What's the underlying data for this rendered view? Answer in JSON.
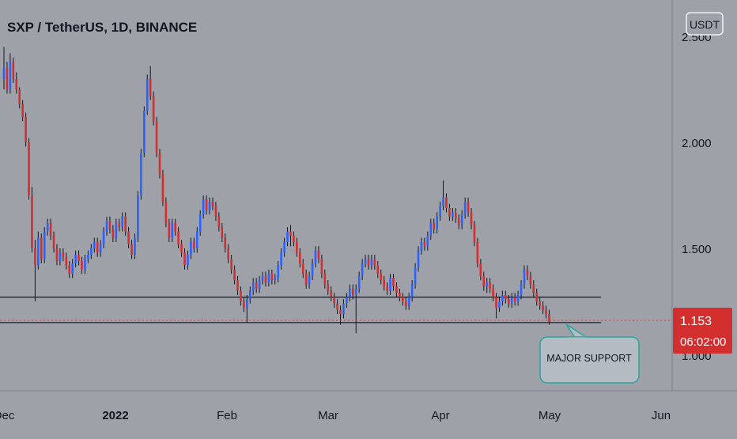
{
  "header": {
    "title": "SXP / TetherUS, 1D, BINANCE",
    "currency_button": "USDT"
  },
  "price_scale": {
    "tick_labels": [
      "2.500",
      "2.000",
      "1.500",
      "1.000"
    ],
    "last_price": "1.153",
    "countdown": "06:02:00"
  },
  "time_scale": {
    "tick_labels": [
      "Dec",
      "2022",
      "Feb",
      "Mar",
      "Apr",
      "May",
      "Jun"
    ]
  },
  "annotation": {
    "callout_text": "MAJOR SUPPORT"
  },
  "colors": {
    "background": "#9fa1a9",
    "up_candle": "#2962ff",
    "down_candle": "#d32f2f",
    "wick": "#131722",
    "support_line": "#131722",
    "price_line": "#e53935",
    "price_badge": "#d32f2f",
    "callout_fill": "#b5bbc2",
    "callout_border": "#26a69a"
  },
  "chart_data": {
    "type": "candlestick",
    "title": "SXP / TetherUS, 1D, BINANCE",
    "symbol": "SXP / TetherUS",
    "interval": "1D",
    "exchange": "BINANCE",
    "quote_currency": "USDT",
    "y_axis_ticks": [
      2.5,
      2.0,
      1.5,
      1.0
    ],
    "x_axis_ticks": [
      "Dec",
      "2022",
      "Feb",
      "Mar",
      "Apr",
      "May",
      "Jun"
    ],
    "last_price": 1.153,
    "support_levels": [
      1.27,
      1.15
    ],
    "series": [
      {
        "name": "SXP / TetherUS",
        "closes": [
          2.35,
          2.25,
          2.38,
          2.3,
          2.25,
          2.18,
          2.12,
          2.0,
          1.75,
          1.5,
          1.42,
          1.55,
          1.45,
          1.58,
          1.62,
          1.56,
          1.5,
          1.44,
          1.48,
          1.46,
          1.42,
          1.38,
          1.43,
          1.47,
          1.44,
          1.4,
          1.45,
          1.47,
          1.5,
          1.53,
          1.48,
          1.52,
          1.58,
          1.63,
          1.59,
          1.55,
          1.62,
          1.6,
          1.65,
          1.58,
          1.52,
          1.47,
          1.55,
          1.75,
          1.95,
          2.15,
          2.3,
          2.22,
          2.1,
          1.95,
          1.85,
          1.72,
          1.62,
          1.55,
          1.62,
          1.58,
          1.52,
          1.48,
          1.42,
          1.47,
          1.53,
          1.5,
          1.58,
          1.66,
          1.73,
          1.68,
          1.72,
          1.7,
          1.65,
          1.6,
          1.55,
          1.5,
          1.45,
          1.4,
          1.35,
          1.3,
          1.25,
          1.22,
          1.26,
          1.3,
          1.34,
          1.31,
          1.35,
          1.37,
          1.34,
          1.38,
          1.35,
          1.36,
          1.42,
          1.48,
          1.53,
          1.58,
          1.56,
          1.53,
          1.48,
          1.43,
          1.38,
          1.33,
          1.37,
          1.43,
          1.49,
          1.45,
          1.38,
          1.33,
          1.3,
          1.27,
          1.24,
          1.21,
          1.19,
          1.24,
          1.27,
          1.31,
          1.28,
          1.31,
          1.37,
          1.43,
          1.45,
          1.42,
          1.45,
          1.42,
          1.38,
          1.35,
          1.32,
          1.3,
          1.36,
          1.32,
          1.29,
          1.27,
          1.25,
          1.23,
          1.27,
          1.33,
          1.41,
          1.49,
          1.53,
          1.51,
          1.56,
          1.62,
          1.59,
          1.65,
          1.7,
          1.74,
          1.69,
          1.65,
          1.67,
          1.64,
          1.61,
          1.66,
          1.72,
          1.67,
          1.61,
          1.53,
          1.43,
          1.37,
          1.32,
          1.34,
          1.31,
          1.27,
          1.22,
          1.25,
          1.28,
          1.26,
          1.24,
          1.27,
          1.25,
          1.28,
          1.33,
          1.4,
          1.37,
          1.33,
          1.29,
          1.25,
          1.23,
          1.21,
          1.19,
          1.153
        ],
        "opens": [
          2.3,
          2.35,
          2.25,
          2.38,
          2.3,
          2.25,
          2.18,
          2.12,
          2.0,
          1.75,
          1.5,
          1.42,
          1.55,
          1.45,
          1.58,
          1.62,
          1.56,
          1.5,
          1.44,
          1.48,
          1.46,
          1.42,
          1.38,
          1.43,
          1.47,
          1.44,
          1.4,
          1.45,
          1.47,
          1.5,
          1.53,
          1.48,
          1.52,
          1.58,
          1.63,
          1.59,
          1.55,
          1.62,
          1.6,
          1.65,
          1.58,
          1.52,
          1.47,
          1.55,
          1.75,
          1.95,
          2.15,
          2.3,
          2.22,
          2.1,
          1.95,
          1.85,
          1.72,
          1.62,
          1.55,
          1.62,
          1.58,
          1.52,
          1.48,
          1.42,
          1.47,
          1.53,
          1.5,
          1.58,
          1.66,
          1.73,
          1.68,
          1.72,
          1.7,
          1.65,
          1.6,
          1.55,
          1.5,
          1.45,
          1.4,
          1.35,
          1.3,
          1.25,
          1.22,
          1.26,
          1.3,
          1.34,
          1.31,
          1.35,
          1.37,
          1.34,
          1.38,
          1.35,
          1.36,
          1.42,
          1.48,
          1.53,
          1.58,
          1.56,
          1.53,
          1.48,
          1.43,
          1.38,
          1.33,
          1.37,
          1.43,
          1.49,
          1.45,
          1.38,
          1.33,
          1.3,
          1.27,
          1.24,
          1.21,
          1.19,
          1.24,
          1.27,
          1.31,
          1.28,
          1.31,
          1.37,
          1.43,
          1.45,
          1.42,
          1.45,
          1.42,
          1.38,
          1.35,
          1.32,
          1.3,
          1.36,
          1.32,
          1.29,
          1.27,
          1.25,
          1.23,
          1.27,
          1.33,
          1.41,
          1.49,
          1.53,
          1.51,
          1.56,
          1.62,
          1.59,
          1.65,
          1.7,
          1.74,
          1.69,
          1.65,
          1.67,
          1.64,
          1.61,
          1.66,
          1.72,
          1.67,
          1.61,
          1.53,
          1.43,
          1.37,
          1.32,
          1.34,
          1.31,
          1.27,
          1.22,
          1.25,
          1.28,
          1.26,
          1.24,
          1.27,
          1.25,
          1.28,
          1.33,
          1.4,
          1.37,
          1.33,
          1.29,
          1.25,
          1.23,
          1.21,
          1.19
        ],
        "highs": [
          2.45,
          2.38,
          2.42,
          2.4,
          2.33,
          2.26,
          2.2,
          2.14,
          2.02,
          1.79,
          1.54,
          1.58,
          1.57,
          1.6,
          1.64,
          1.64,
          1.58,
          1.52,
          1.5,
          1.5,
          1.48,
          1.44,
          1.45,
          1.49,
          1.49,
          1.46,
          1.47,
          1.49,
          1.52,
          1.55,
          1.55,
          1.54,
          1.6,
          1.65,
          1.65,
          1.61,
          1.64,
          1.64,
          1.67,
          1.67,
          1.6,
          1.54,
          1.57,
          1.77,
          1.97,
          2.17,
          2.32,
          2.36,
          2.24,
          2.12,
          1.97,
          1.87,
          1.74,
          1.64,
          1.64,
          1.64,
          1.6,
          1.54,
          1.5,
          1.49,
          1.55,
          1.55,
          1.6,
          1.68,
          1.75,
          1.75,
          1.74,
          1.74,
          1.72,
          1.67,
          1.62,
          1.57,
          1.52,
          1.47,
          1.42,
          1.37,
          1.32,
          1.27,
          1.28,
          1.32,
          1.36,
          1.36,
          1.37,
          1.39,
          1.39,
          1.4,
          1.4,
          1.38,
          1.44,
          1.5,
          1.55,
          1.6,
          1.61,
          1.58,
          1.55,
          1.5,
          1.45,
          1.4,
          1.39,
          1.45,
          1.51,
          1.51,
          1.47,
          1.4,
          1.35,
          1.32,
          1.29,
          1.26,
          1.23,
          1.26,
          1.29,
          1.33,
          1.33,
          1.33,
          1.39,
          1.45,
          1.47,
          1.47,
          1.47,
          1.47,
          1.44,
          1.4,
          1.37,
          1.34,
          1.38,
          1.38,
          1.34,
          1.31,
          1.29,
          1.27,
          1.29,
          1.35,
          1.43,
          1.51,
          1.55,
          1.55,
          1.58,
          1.64,
          1.64,
          1.67,
          1.72,
          1.82,
          1.76,
          1.71,
          1.69,
          1.69,
          1.66,
          1.68,
          1.74,
          1.74,
          1.69,
          1.63,
          1.55,
          1.45,
          1.39,
          1.36,
          1.36,
          1.33,
          1.29,
          1.27,
          1.3,
          1.3,
          1.28,
          1.29,
          1.29,
          1.3,
          1.35,
          1.42,
          1.42,
          1.39,
          1.35,
          1.31,
          1.27,
          1.25,
          1.23,
          1.21
        ],
        "lows": [
          2.25,
          2.23,
          2.23,
          2.28,
          2.23,
          2.16,
          2.1,
          1.98,
          1.73,
          1.48,
          1.25,
          1.4,
          1.43,
          1.43,
          1.56,
          1.54,
          1.48,
          1.42,
          1.42,
          1.44,
          1.4,
          1.36,
          1.36,
          1.41,
          1.42,
          1.38,
          1.38,
          1.43,
          1.45,
          1.48,
          1.46,
          1.46,
          1.5,
          1.56,
          1.57,
          1.53,
          1.53,
          1.58,
          1.58,
          1.56,
          1.5,
          1.45,
          1.45,
          1.53,
          1.73,
          1.93,
          2.13,
          2.2,
          2.08,
          1.93,
          1.83,
          1.7,
          1.6,
          1.53,
          1.53,
          1.56,
          1.5,
          1.46,
          1.4,
          1.4,
          1.45,
          1.48,
          1.48,
          1.56,
          1.64,
          1.66,
          1.66,
          1.68,
          1.63,
          1.58,
          1.53,
          1.48,
          1.43,
          1.38,
          1.33,
          1.28,
          1.23,
          1.2,
          1.15,
          1.24,
          1.28,
          1.29,
          1.29,
          1.33,
          1.32,
          1.32,
          1.33,
          1.33,
          1.34,
          1.4,
          1.46,
          1.51,
          1.51,
          1.51,
          1.46,
          1.41,
          1.36,
          1.31,
          1.31,
          1.35,
          1.41,
          1.43,
          1.36,
          1.31,
          1.28,
          1.25,
          1.22,
          1.19,
          1.14,
          1.17,
          1.22,
          1.25,
          1.26,
          1.1,
          1.29,
          1.35,
          1.41,
          1.4,
          1.4,
          1.4,
          1.36,
          1.33,
          1.3,
          1.28,
          1.28,
          1.3,
          1.27,
          1.25,
          1.23,
          1.21,
          1.21,
          1.25,
          1.31,
          1.39,
          1.47,
          1.49,
          1.49,
          1.54,
          1.57,
          1.57,
          1.63,
          1.68,
          1.67,
          1.63,
          1.63,
          1.62,
          1.59,
          1.59,
          1.64,
          1.65,
          1.59,
          1.51,
          1.41,
          1.35,
          1.3,
          1.29,
          1.29,
          1.25,
          1.17,
          1.2,
          1.23,
          1.24,
          1.22,
          1.22,
          1.23,
          1.23,
          1.26,
          1.31,
          1.35,
          1.31,
          1.27,
          1.23,
          1.21,
          1.19,
          1.17,
          1.14
        ]
      }
    ],
    "annotations": [
      "MAJOR SUPPORT"
    ]
  }
}
